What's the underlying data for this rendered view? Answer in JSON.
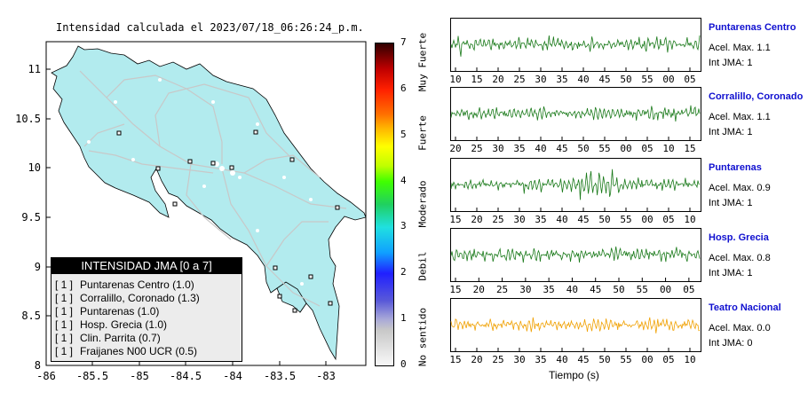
{
  "map": {
    "title": "Intensidad calculada el 2023/07/18_06:26:24_p.m.",
    "x_ticks": [
      "-86",
      "-85.5",
      "-85",
      "-84.5",
      "-84",
      "-83.5",
      "-83"
    ],
    "y_ticks": [
      "11",
      "10.5",
      "10",
      "9.5",
      "9",
      "8.5",
      "8"
    ],
    "legend": {
      "title": "INTENSIDAD JMA [0 a 7]",
      "items": [
        {
          "level": "[ 1 ]",
          "text": "Puntarenas Centro (1.0)"
        },
        {
          "level": "[ 1 ]",
          "text": "Corralillo, Coronado (1.3)"
        },
        {
          "level": "[ 1 ]",
          "text": "Puntarenas (1.0)"
        },
        {
          "level": "[ 1 ]",
          "text": "Hosp. Grecia (1.0)"
        },
        {
          "level": "[ 1 ]",
          "text": "Clin. Parrita (0.7)"
        },
        {
          "level": "[ 1 ]",
          "text": "Fraijanes N00 UCR (0.5)"
        }
      ]
    },
    "colors": {
      "land": "#b2ebee",
      "border": "#000000",
      "roads": "#c8c8c8"
    }
  },
  "colorbar": {
    "ticks": [
      "0",
      "1",
      "2",
      "3",
      "4",
      "5",
      "6",
      "7"
    ],
    "labels": [
      "No sentido",
      "Debil",
      "Moderado",
      "Fuerte",
      "Muy Fuerte"
    ]
  },
  "chart_data": [
    {
      "type": "line",
      "station": "Puntarenas Centro",
      "accel_label": "Acel. Max. 1.1",
      "jma_label": "Int JMA: 1",
      "color": "#1a7a1a",
      "x_ticks": [
        "10",
        "15",
        "20",
        "25",
        "30",
        "35",
        "40",
        "45",
        "50",
        "55",
        "00",
        "05"
      ]
    },
    {
      "type": "line",
      "station": "Corralillo, Coronado",
      "accel_label": "Acel. Max. 1.1",
      "jma_label": "Int JMA: 1",
      "color": "#1a7a1a",
      "x_ticks": [
        "20",
        "25",
        "30",
        "35",
        "40",
        "45",
        "50",
        "55",
        "00",
        "05",
        "10",
        "15"
      ]
    },
    {
      "type": "line",
      "station": "Puntarenas",
      "accel_label": "Acel. Max. 0.9",
      "jma_label": "Int JMA: 1",
      "color": "#1a7a1a",
      "x_ticks": [
        "15",
        "20",
        "25",
        "30",
        "35",
        "40",
        "45",
        "50",
        "55",
        "00",
        "05",
        "10"
      ]
    },
    {
      "type": "line",
      "station": "Hosp. Grecia",
      "accel_label": "Acel. Max. 0.8",
      "jma_label": "Int JMA: 1",
      "color": "#1a7a1a",
      "x_ticks": [
        "15",
        "20",
        "25",
        "30",
        "35",
        "40",
        "45",
        "50",
        "55",
        "00",
        "05"
      ]
    },
    {
      "type": "line",
      "station": "Teatro Nacional",
      "accel_label": "Acel. Max. 0.0",
      "jma_label": "Int JMA: 0",
      "color": "#f0a000",
      "x_ticks": [
        "15",
        "20",
        "25",
        "30",
        "35",
        "40",
        "45",
        "50",
        "55",
        "00",
        "05",
        "10"
      ],
      "xlabel": "Tiempo (s)"
    }
  ],
  "station_label_color": "#1010d0"
}
